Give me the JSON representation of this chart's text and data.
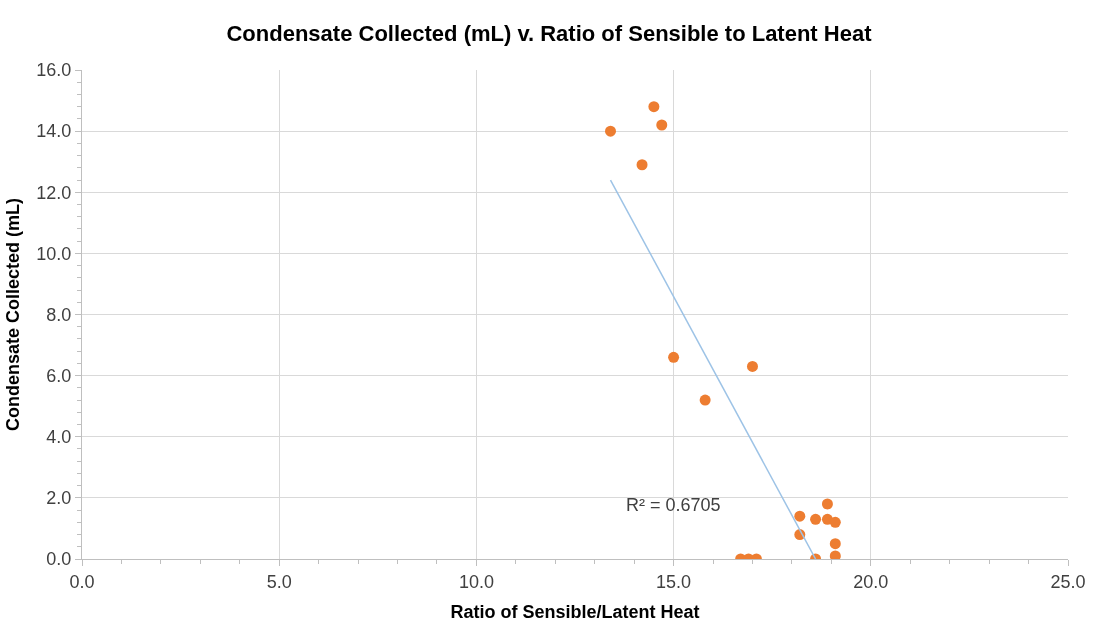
{
  "chart_data": {
    "type": "scatter",
    "title": "Condensate Collected (mL) v. Ratio of Sensible to Latent Heat",
    "xlabel": "Ratio of Sensible/Latent Heat",
    "ylabel": "Condensate Collected (mL)",
    "series": [
      {
        "color": "#ed7d31",
        "x": [
          13.4,
          14.5,
          14.7,
          14.2,
          15.0,
          15.8,
          17.0,
          16.7,
          16.9,
          17.1,
          18.2,
          18.2,
          18.6,
          18.9,
          18.9,
          19.1,
          19.1,
          19.1,
          18.6
        ],
        "values": [
          14.0,
          14.8,
          14.2,
          12.9,
          6.6,
          5.2,
          6.3,
          0.0,
          0.0,
          0.0,
          1.4,
          0.8,
          1.3,
          1.8,
          1.3,
          1.2,
          0.5,
          0.1,
          0.0
        ]
      },
      {
        "type": "line",
        "marker": "none",
        "color": "#9dc3e6",
        "x": [
          13.4,
          18.6
        ],
        "values": [
          12.4,
          0.0
        ]
      }
    ],
    "annotations": [
      "R² = 0.6705"
    ],
    "xlim": [
      0,
      25
    ],
    "xticks": [
      {
        "value": 0,
        "label": "0.0"
      },
      {
        "value": 5,
        "label": "5.0"
      },
      {
        "value": 10,
        "label": "10.0"
      },
      {
        "value": 15,
        "label": "15.0"
      },
      {
        "value": 20,
        "label": "20.0"
      },
      {
        "value": 25,
        "label": "25.0"
      }
    ],
    "ylim": [
      0,
      16
    ],
    "yticks": [
      {
        "value": 0,
        "label": "0.0"
      },
      {
        "value": 2,
        "label": "2.0"
      },
      {
        "value": 4,
        "label": "4.0"
      },
      {
        "value": 6,
        "label": "6.0"
      },
      {
        "value": 8,
        "label": "8.0"
      },
      {
        "value": 10,
        "label": "10.0"
      },
      {
        "value": 12,
        "label": "12.0"
      },
      {
        "value": 14,
        "label": "14.0"
      },
      {
        "value": 16,
        "label": "16.0"
      }
    ],
    "grid": true,
    "marker": "circle",
    "legend": false
  }
}
